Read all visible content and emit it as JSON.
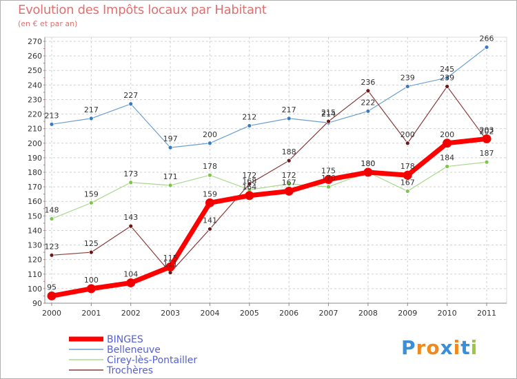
{
  "title": "Evolution des Impôts locaux par Habitant",
  "subtitle": "(en € et par an)",
  "logo": "Proxiti",
  "chart_data": {
    "type": "line",
    "title": "Evolution des Impôts locaux par Habitant",
    "subtitle": "(en € et par an)",
    "xlabel": "",
    "ylabel": "",
    "x": [
      2000,
      2001,
      2002,
      2003,
      2004,
      2005,
      2006,
      2007,
      2008,
      2009,
      2010,
      2011
    ],
    "ylim": [
      90,
      270
    ],
    "yticks": [
      90,
      100,
      110,
      120,
      130,
      140,
      150,
      160,
      170,
      180,
      190,
      200,
      210,
      220,
      230,
      240,
      250,
      260,
      270
    ],
    "grid": true,
    "legend_position": "bottom-left",
    "series": [
      {
        "name": "Belleneuve",
        "color": "#6a9ed0",
        "point": "#3a7bc0",
        "width": 1.2,
        "values": [
          213,
          217,
          227,
          197,
          200,
          212,
          217,
          214,
          222,
          239,
          245,
          266
        ]
      },
      {
        "name": "Cirey-lès-Pontailler",
        "color": "#a8d88a",
        "point": "#7cc44a",
        "width": 1.2,
        "values": [
          148,
          159,
          173,
          171,
          178,
          168,
          172,
          170,
          180,
          167,
          184,
          187
        ]
      },
      {
        "name": "Trochères",
        "color": "#8a3a3a",
        "point": "#6a1818",
        "width": 1.2,
        "values": [
          123,
          125,
          143,
          111,
          141,
          172,
          188,
          215,
          236,
          200,
          239,
          202
        ]
      },
      {
        "name": "BINGES",
        "color": "#ff0000",
        "point": "#ee0000",
        "width": 7,
        "values": [
          95,
          100,
          104,
          115,
          159,
          164,
          167,
          175,
          180,
          178,
          200,
          203
        ]
      }
    ],
    "legend_order": [
      "BINGES",
      "Belleneuve",
      "Cirey-lès-Pontailler",
      "Trochères"
    ]
  }
}
